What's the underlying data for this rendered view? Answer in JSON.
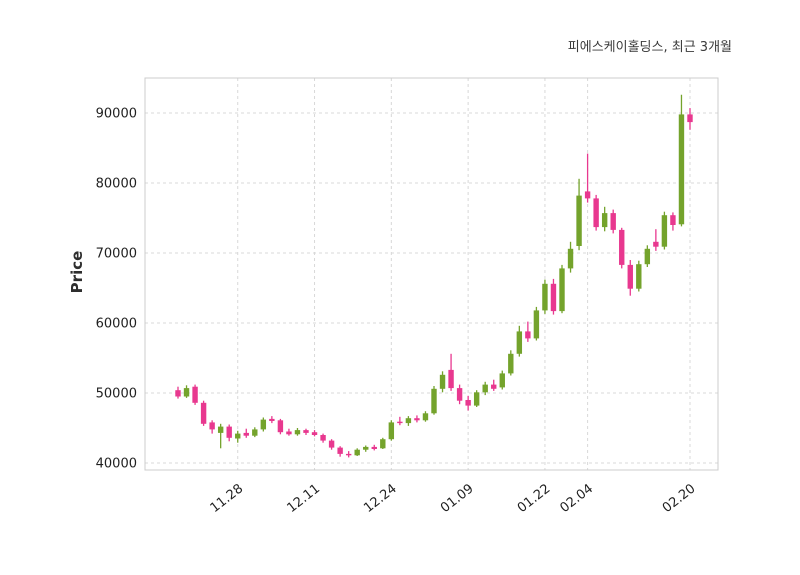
{
  "chart_data": {
    "type": "candlestick",
    "title": "피에스케이홀딩스, 최근 3개월",
    "xlabel": "",
    "ylabel": "Price",
    "ylim": [
      39000,
      95000
    ],
    "grid": true,
    "legend": "none",
    "yticks": [
      40000,
      50000,
      60000,
      70000,
      80000,
      90000
    ],
    "xticklabels": [
      "11.28",
      "12.11",
      "12.24",
      "01.09",
      "01.22",
      "02.04",
      "02.20"
    ],
    "colors": {
      "up": "#74a32c",
      "down": "#e8388f",
      "grid": "#d8d8d8",
      "spine": "#cccccc",
      "tick": "#1f1f1f",
      "title": "#3a3a3a"
    },
    "candles_format": [
      "date",
      "open",
      "high",
      "low",
      "close"
    ],
    "candles": [
      [
        "11.19",
        50400,
        50900,
        49200,
        49500
      ],
      [
        "11.20",
        49500,
        51100,
        49300,
        50700
      ],
      [
        "11.21",
        50900,
        51200,
        48300,
        48600
      ],
      [
        "11.22",
        48600,
        48900,
        45300,
        45600
      ],
      [
        "11.25",
        45800,
        46100,
        44200,
        44800
      ],
      [
        "11.26",
        44300,
        45600,
        42100,
        45200
      ],
      [
        "11.27",
        45200,
        45500,
        43100,
        43600
      ],
      [
        "11.28",
        43500,
        44600,
        42900,
        44200
      ],
      [
        "11.29",
        44300,
        44900,
        43600,
        43900
      ],
      [
        "12.02",
        43900,
        45100,
        43700,
        44800
      ],
      [
        "12.03",
        44800,
        46500,
        44500,
        46200
      ],
      [
        "12.04",
        46300,
        46700,
        45700,
        46000
      ],
      [
        "12.05",
        46100,
        46300,
        44100,
        44400
      ],
      [
        "12.06",
        44500,
        44900,
        43900,
        44100
      ],
      [
        "12.09",
        44100,
        45000,
        43900,
        44700
      ],
      [
        "12.10",
        44700,
        44900,
        44000,
        44300
      ],
      [
        "12.11",
        44400,
        44700,
        43800,
        44000
      ],
      [
        "12.12",
        44000,
        44200,
        42900,
        43200
      ],
      [
        "12.13",
        43200,
        43400,
        41900,
        42200
      ],
      [
        "12.16",
        42200,
        42400,
        40900,
        41300
      ],
      [
        "12.17",
        41300,
        41700,
        40800,
        41100
      ],
      [
        "12.18",
        41100,
        42100,
        41000,
        41900
      ],
      [
        "12.19",
        41900,
        42500,
        41600,
        42300
      ],
      [
        "12.20",
        42300,
        42600,
        41800,
        42000
      ],
      [
        "12.23",
        42100,
        43600,
        42000,
        43400
      ],
      [
        "12.24",
        43400,
        46100,
        43200,
        45800
      ],
      [
        "12.26",
        45900,
        46600,
        45400,
        45700
      ],
      [
        "12.27",
        45700,
        46700,
        45300,
        46400
      ],
      [
        "12.30",
        46400,
        46800,
        45800,
        46100
      ],
      [
        "01.02",
        46100,
        47400,
        45900,
        47100
      ],
      [
        "01.03",
        47100,
        51000,
        46900,
        50600
      ],
      [
        "01.06",
        50600,
        53100,
        50100,
        52600
      ],
      [
        "01.07",
        53300,
        55600,
        50300,
        50700
      ],
      [
        "01.08",
        50700,
        51200,
        48400,
        48900
      ],
      [
        "01.09",
        49000,
        49600,
        47500,
        48200
      ],
      [
        "01.10",
        48200,
        50400,
        48000,
        50100
      ],
      [
        "01.13",
        50100,
        51600,
        49700,
        51200
      ],
      [
        "01.14",
        51200,
        51900,
        50300,
        50600
      ],
      [
        "01.15",
        50800,
        53200,
        50500,
        52800
      ],
      [
        "01.16",
        52800,
        56100,
        52500,
        55600
      ],
      [
        "01.17",
        55600,
        59600,
        55200,
        58800
      ],
      [
        "01.20",
        58800,
        60200,
        57300,
        57800
      ],
      [
        "01.21",
        57800,
        62300,
        57500,
        61800
      ],
      [
        "01.22",
        61800,
        66200,
        61300,
        65600
      ],
      [
        "01.23",
        65600,
        66300,
        61200,
        61700
      ],
      [
        "01.24",
        61700,
        68300,
        61400,
        67800
      ],
      [
        "01.31",
        67800,
        71600,
        67200,
        70600
      ],
      [
        "02.03",
        71000,
        80600,
        70400,
        78200
      ],
      [
        "02.04",
        78800,
        84200,
        77200,
        77800
      ],
      [
        "02.05",
        77800,
        78300,
        73200,
        73700
      ],
      [
        "02.06",
        73700,
        76600,
        73100,
        75700
      ],
      [
        "02.07",
        75700,
        76200,
        72800,
        73300
      ],
      [
        "02.10",
        73300,
        73600,
        67800,
        68300
      ],
      [
        "02.11",
        68300,
        69000,
        63900,
        64900
      ],
      [
        "02.12",
        64900,
        68900,
        64500,
        68400
      ],
      [
        "02.13",
        68400,
        71100,
        68000,
        70600
      ],
      [
        "02.14",
        71600,
        73400,
        70300,
        70900
      ],
      [
        "02.17",
        70900,
        75900,
        70500,
        75400
      ],
      [
        "02.18",
        75400,
        75800,
        73200,
        74000
      ],
      [
        "02.19",
        74100,
        92600,
        73800,
        89800
      ],
      [
        "02.20",
        89800,
        90700,
        87600,
        88700
      ]
    ]
  }
}
